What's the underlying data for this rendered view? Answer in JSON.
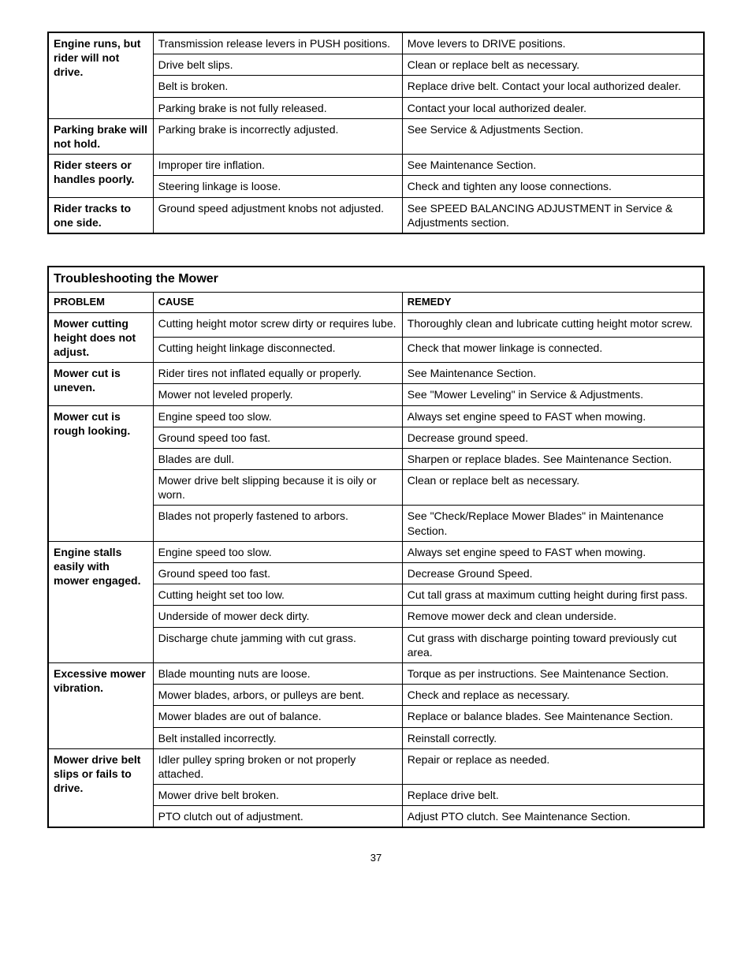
{
  "topTable": {
    "rows": [
      {
        "problem": "Engine runs, but rider will not drive.",
        "rowspan": 4,
        "cause": "Transmission release levers in PUSH positions.",
        "remedy": "Move levers to DRIVE positions."
      },
      {
        "cause": "Drive belt slips.",
        "remedy": "Clean or replace belt as necessary."
      },
      {
        "cause": "Belt is broken.",
        "remedy": "Replace drive belt.  Contact your local authorized dealer."
      },
      {
        "cause": "Parking brake is not fully released.",
        "remedy": "Contact your local authorized dealer."
      },
      {
        "problem": "Parking brake will not hold.",
        "rowspan": 1,
        "cause": "Parking brake is incorrectly adjusted.",
        "remedy": "See Service & Adjustments Section."
      },
      {
        "problem": "Rider steers or handles poorly.",
        "rowspan": 2,
        "cause": "Improper tire inflation.",
        "remedy": "See Maintenance Section."
      },
      {
        "cause": "Steering linkage is loose.",
        "remedy": "Check and tighten any loose connections."
      },
      {
        "problem": "Rider tracks to one side.",
        "rowspan": 1,
        "cause": "Ground speed adjustment knobs not adjusted.",
        "remedy": "See SPEED BALANCING ADJUSTMENT in Service & Adjustments section."
      }
    ]
  },
  "mowerTable": {
    "title": "Troubleshooting the Mower",
    "headers": {
      "problem": "PROBLEM",
      "cause": "CAUSE",
      "remedy": "REMEDY"
    },
    "rows": [
      {
        "problem": "Mower cutting height does not adjust.",
        "rowspan": 2,
        "cause": "Cutting height motor screw dirty or requires lube.",
        "remedy": "Thoroughly clean and lubricate cutting height motor screw."
      },
      {
        "cause": "Cutting height linkage disconnected.",
        "remedy": "Check that mower linkage is connected."
      },
      {
        "problem": "Mower cut is uneven.",
        "rowspan": 2,
        "cause": "Rider tires not inflated equally or properly.",
        "remedy": "See Maintenance Section."
      },
      {
        "cause": "Mower not leveled properly.",
        "remedy": "See \"Mower Leveling\" in Service & Adjustments."
      },
      {
        "problem": "Mower cut is rough looking.",
        "rowspan": 5,
        "cause": "Engine speed too slow.",
        "remedy": "Always set engine speed to FAST when mowing."
      },
      {
        "cause": "Ground speed too fast.",
        "remedy": "Decrease ground speed."
      },
      {
        "cause": "Blades are dull.",
        "remedy": "Sharpen or replace blades.  See Maintenance Section."
      },
      {
        "cause": "Mower drive belt slipping because it is oily or worn.",
        "remedy": "Clean or replace belt as necessary."
      },
      {
        "cause": "Blades not properly fastened to arbors.",
        "remedy": "See \"Check/Replace Mower Blades\" in Maintenance Section."
      },
      {
        "problem": "Engine stalls easily with mower engaged.",
        "rowspan": 5,
        "cause": "Engine speed too slow.",
        "remedy": "Always set engine speed to FAST when mowing."
      },
      {
        "cause": "Ground speed too fast.",
        "remedy": "Decrease Ground Speed."
      },
      {
        "cause": "Cutting height set too low.",
        "remedy": "Cut tall grass at maximum cutting height during first pass."
      },
      {
        "cause": "Underside of mower deck dirty.",
        "remedy": "Remove mower deck and clean underside."
      },
      {
        "cause": "Discharge chute jamming with cut grass.",
        "remedy": "Cut grass with discharge pointing toward previously cut area."
      },
      {
        "problem": "Excessive mower vibration.",
        "rowspan": 4,
        "cause": "Blade mounting nuts are loose.",
        "remedy": "Torque as per instructions.  See Maintenance Section."
      },
      {
        "cause": "Mower blades, arbors, or pulleys are bent.",
        "remedy": "Check and replace as necessary."
      },
      {
        "cause": "Mower blades are out of balance.",
        "remedy": "Replace or balance blades.  See Maintenance Section."
      },
      {
        "cause": "Belt installed incorrectly.",
        "remedy": "Reinstall correctly."
      },
      {
        "problem": "Mower drive belt slips or fails to drive.",
        "rowspan": 3,
        "cause": "Idler pulley spring broken or not properly attached.",
        "remedy": "Repair or replace as needed."
      },
      {
        "cause": "Mower drive belt broken.",
        "remedy": "Replace drive belt."
      },
      {
        "cause": "PTO clutch out of adjustment.",
        "remedy": "Adjust PTO clutch.  See Maintenance Section."
      }
    ]
  },
  "pageNumber": "37"
}
